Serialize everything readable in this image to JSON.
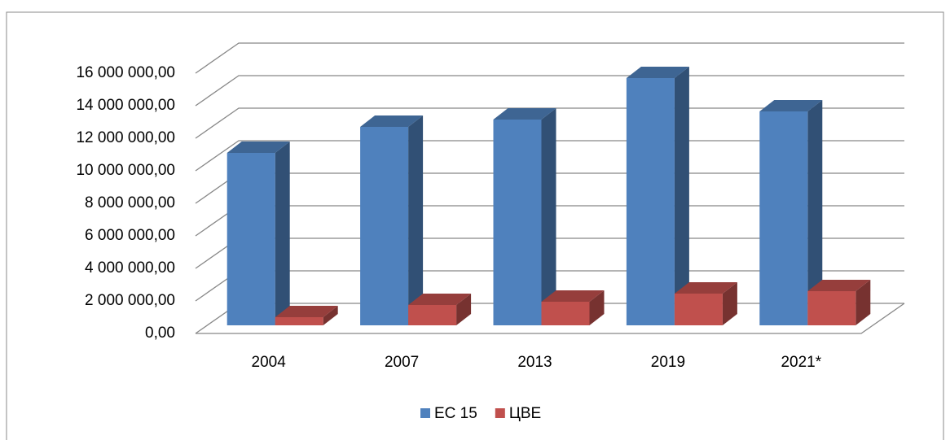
{
  "chart_data": {
    "type": "bar3d",
    "categories": [
      "2004",
      "2007",
      "2013",
      "2019",
      "2021*"
    ],
    "series": [
      {
        "name": "ЕС 15",
        "color": "#4f81bd",
        "values": [
          10600000,
          12200000,
          12650000,
          15200000,
          13150000
        ]
      },
      {
        "name": "ЦВЕ",
        "color": "#c0504d",
        "values": [
          500000,
          1250000,
          1450000,
          1950000,
          2100000
        ]
      }
    ],
    "ylim": [
      0,
      16000000
    ],
    "yticks": [
      {
        "value": 0,
        "label": "0,00"
      },
      {
        "value": 2000000,
        "label": "2 000 000,00"
      },
      {
        "value": 4000000,
        "label": "4 000 000,00"
      },
      {
        "value": 6000000,
        "label": "6 000 000,00"
      },
      {
        "value": 8000000,
        "label": "8 000 000,00"
      },
      {
        "value": 10000000,
        "label": "10 000 000,00"
      },
      {
        "value": 12000000,
        "label": "12 000 000,00"
      },
      {
        "value": 14000000,
        "label": "14 000 000,00"
      },
      {
        "value": 16000000,
        "label": "16 000 000,00"
      }
    ],
    "grid": true,
    "legend": "bottom"
  }
}
